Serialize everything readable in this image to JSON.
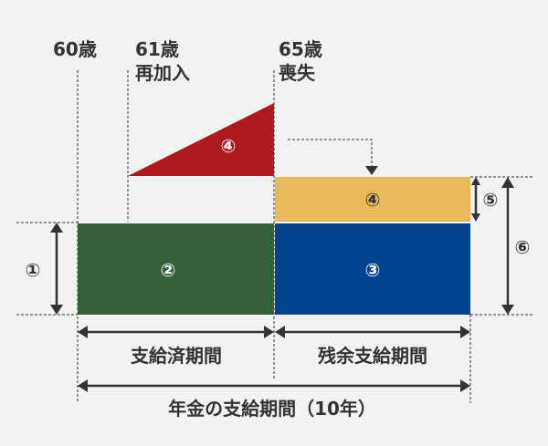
{
  "labels": {
    "age60": "60歳",
    "age61": "61歳",
    "rejoin": "再加入",
    "age65": "65歳",
    "loss": "喪失",
    "paid_period": "支給済期間",
    "remaining_period": "残余支給期間",
    "total_period": "年金の支給期間（10年）"
  },
  "markers": {
    "m1": "①",
    "m2": "②",
    "m3": "③",
    "m4_triangle": "④",
    "m4_block": "④",
    "m5": "⑤",
    "m6": "⑥"
  },
  "colors": {
    "paid": "#37613d",
    "remaining": "#00448e",
    "added": "#e9b85a",
    "triangle": "#ac1a1b"
  }
}
